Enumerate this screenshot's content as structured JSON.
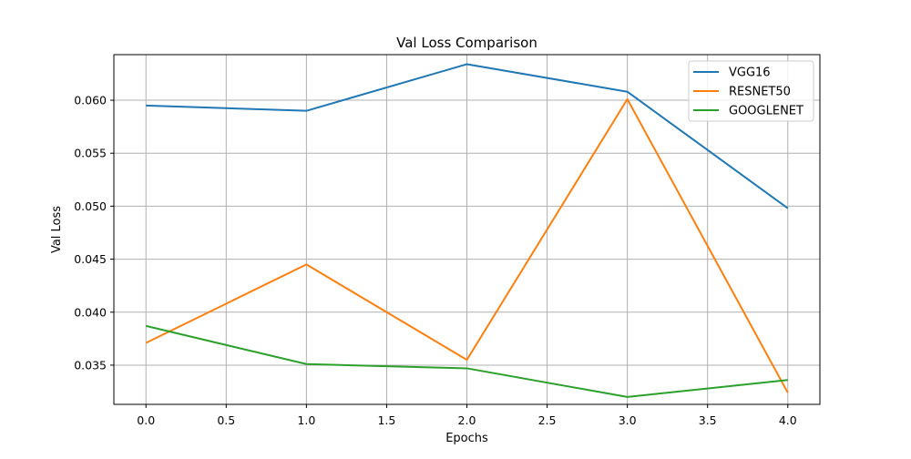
{
  "chart_data": {
    "type": "line",
    "title": "Val Loss Comparison",
    "xlabel": "Epochs",
    "ylabel": "Val Loss",
    "x": [
      0,
      1,
      2,
      3,
      4
    ],
    "xlim": [
      -0.2,
      4.2
    ],
    "ylim": [
      0.0313,
      0.0643
    ],
    "xticks": [
      0.0,
      0.5,
      1.0,
      1.5,
      2.0,
      2.5,
      3.0,
      3.5,
      4.0
    ],
    "xtick_labels": [
      "0.0",
      "0.5",
      "1.0",
      "1.5",
      "2.0",
      "2.5",
      "3.0",
      "3.5",
      "4.0"
    ],
    "yticks": [
      0.035,
      0.04,
      0.045,
      0.05,
      0.055,
      0.06
    ],
    "ytick_labels": [
      "0.035",
      "0.040",
      "0.045",
      "0.050",
      "0.055",
      "0.060"
    ],
    "grid": true,
    "legend_position": "top-right",
    "series": [
      {
        "name": "VGG16",
        "color": "#1f77b4",
        "values": [
          0.0595,
          0.059,
          0.0634,
          0.0608,
          0.0498
        ]
      },
      {
        "name": "RESNET50",
        "color": "#ff7f0e",
        "values": [
          0.0371,
          0.0445,
          0.0355,
          0.0601,
          0.0324
        ]
      },
      {
        "name": "GOOGLENET",
        "color": "#2ca02c",
        "values": [
          0.0387,
          0.0351,
          0.0347,
          0.032,
          0.0336
        ]
      }
    ]
  }
}
